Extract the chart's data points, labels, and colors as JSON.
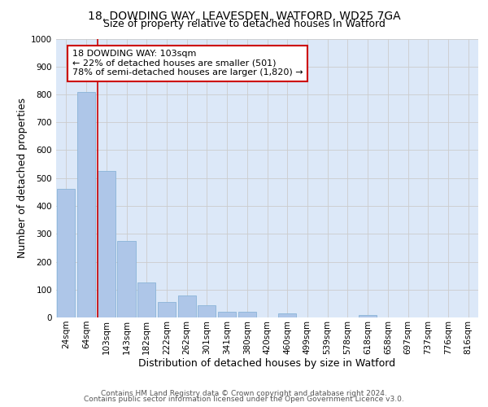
{
  "title_line1": "18, DOWDING WAY, LEAVESDEN, WATFORD, WD25 7GA",
  "title_line2": "Size of property relative to detached houses in Watford",
  "xlabel": "Distribution of detached houses by size in Watford",
  "ylabel": "Number of detached properties",
  "categories": [
    "24sqm",
    "64sqm",
    "103sqm",
    "143sqm",
    "182sqm",
    "222sqm",
    "262sqm",
    "301sqm",
    "341sqm",
    "380sqm",
    "420sqm",
    "460sqm",
    "499sqm",
    "539sqm",
    "578sqm",
    "618sqm",
    "658sqm",
    "697sqm",
    "737sqm",
    "776sqm",
    "816sqm"
  ],
  "values": [
    460,
    810,
    525,
    275,
    125,
    55,
    80,
    45,
    20,
    20,
    0,
    15,
    0,
    0,
    0,
    10,
    0,
    0,
    0,
    0,
    0
  ],
  "bar_color": "#aec6e8",
  "bar_edge_color": "#8ab4d8",
  "highlight_index": 2,
  "highlight_line_color": "#cc0000",
  "annotation_text": "18 DOWDING WAY: 103sqm\n← 22% of detached houses are smaller (501)\n78% of semi-detached houses are larger (1,820) →",
  "annotation_box_color": "#ffffff",
  "annotation_box_edge_color": "#cc0000",
  "ylim": [
    0,
    1000
  ],
  "yticks": [
    0,
    100,
    200,
    300,
    400,
    500,
    600,
    700,
    800,
    900,
    1000
  ],
  "grid_color": "#cccccc",
  "bg_color": "#dce8f8",
  "footnote_line1": "Contains HM Land Registry data © Crown copyright and database right 2024.",
  "footnote_line2": "Contains public sector information licensed under the Open Government Licence v3.0.",
  "title_fontsize": 10,
  "subtitle_fontsize": 9,
  "axis_label_fontsize": 9,
  "tick_fontsize": 7.5,
  "annotation_fontsize": 8,
  "footnote_fontsize": 6.5
}
